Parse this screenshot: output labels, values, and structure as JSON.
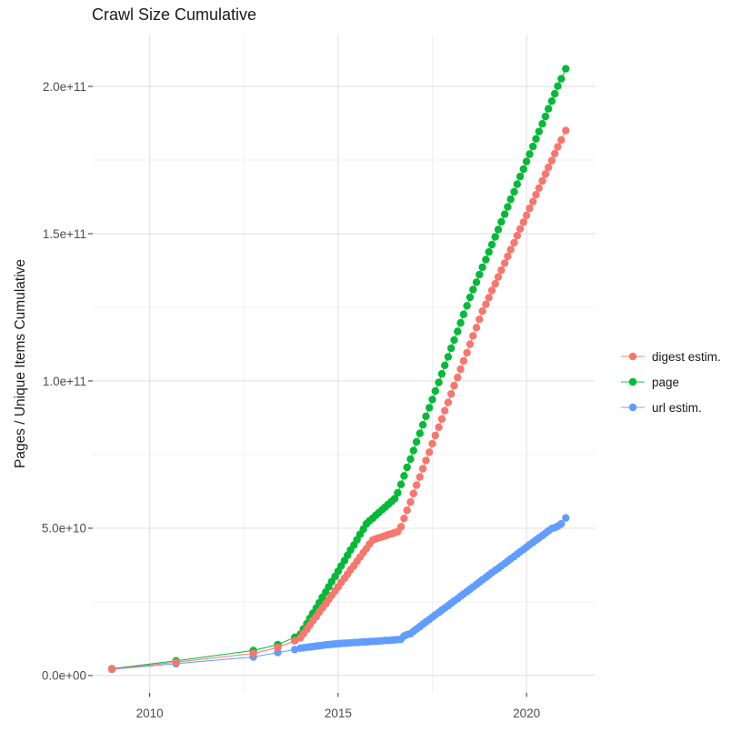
{
  "chart_data": {
    "type": "line",
    "title": "Crawl Size Cumulative",
    "xlabel": "",
    "ylabel": "Pages / Unique Items Cumulative",
    "legend_position": "right",
    "grid": true,
    "x_domain": [
      2008.49,
      2021.83
    ],
    "y_domain_e9": [
      -5.9,
      217.6
    ],
    "x_ticks": [
      {
        "label": "2010",
        "year": 2010
      },
      {
        "label": "2015",
        "year": 2015
      },
      {
        "label": "2020",
        "year": 2020
      }
    ],
    "x_minor_years": [
      2012.5,
      2017.5
    ],
    "y_ticks": [
      {
        "label": "0.0e+00",
        "value_e9": 0
      },
      {
        "label": "5.0e+10",
        "value_e9": 50
      },
      {
        "label": "1.0e+11",
        "value_e9": 100
      },
      {
        "label": "1.5e+11",
        "value_e9": 150
      },
      {
        "label": "2.0e+11",
        "value_e9": 200
      }
    ],
    "y_minor_e9": [
      25,
      75,
      125,
      175
    ],
    "colors": {
      "grid_major": "#e4e4e4",
      "grid_minor": "#f0f0f0",
      "tick": "#333333",
      "tick_label": "#4d4d4d",
      "text": "#1a1a1a"
    },
    "series": [
      {
        "name": "digest estim.",
        "color": "#F8766D",
        "points_year_value_e9": [
          [
            2009,
            2.2
          ],
          [
            2010.7,
            4.5
          ],
          [
            2012.75,
            7.5
          ],
          [
            2013.4,
            9.5
          ],
          [
            2013.85,
            11.8
          ],
          [
            2014,
            12.8
          ],
          [
            2014.08,
            14.2
          ],
          [
            2014.17,
            15.7
          ],
          [
            2014.25,
            17.1
          ],
          [
            2014.33,
            18.6
          ],
          [
            2014.42,
            20
          ],
          [
            2014.5,
            21.5
          ],
          [
            2014.58,
            22.9
          ],
          [
            2014.67,
            24.3
          ],
          [
            2014.75,
            25.8
          ],
          [
            2014.83,
            27.2
          ],
          [
            2014.92,
            28.7
          ],
          [
            2015,
            30.1
          ],
          [
            2015.08,
            31.6
          ],
          [
            2015.17,
            33
          ],
          [
            2015.25,
            34.4
          ],
          [
            2015.33,
            35.9
          ],
          [
            2015.42,
            37.3
          ],
          [
            2015.5,
            38.8
          ],
          [
            2015.58,
            40.2
          ],
          [
            2015.67,
            41.7
          ],
          [
            2015.75,
            43.1
          ],
          [
            2015.83,
            44.6
          ],
          [
            2015.92,
            46
          ],
          [
            2016,
            46.4
          ],
          [
            2016.08,
            46.7
          ],
          [
            2016.17,
            47.1
          ],
          [
            2016.25,
            47.4
          ],
          [
            2016.33,
            47.8
          ],
          [
            2016.42,
            48.1
          ],
          [
            2016.5,
            48.5
          ],
          [
            2016.58,
            48.8
          ],
          [
            2016.67,
            50.5
          ],
          [
            2016.75,
            53.3
          ],
          [
            2016.83,
            56.1
          ],
          [
            2016.92,
            58.9
          ],
          [
            2017,
            61.8
          ],
          [
            2017.08,
            64.6
          ],
          [
            2017.17,
            67.4
          ],
          [
            2017.25,
            70.2
          ],
          [
            2017.33,
            73
          ],
          [
            2017.42,
            75.8
          ],
          [
            2017.5,
            78.7
          ],
          [
            2017.58,
            81.5
          ],
          [
            2017.67,
            84.3
          ],
          [
            2017.75,
            87.1
          ],
          [
            2017.83,
            89.9
          ],
          [
            2017.92,
            92.7
          ],
          [
            2018,
            95.6
          ],
          [
            2018.08,
            98.4
          ],
          [
            2018.17,
            101.2
          ],
          [
            2018.25,
            104
          ],
          [
            2018.33,
            106.8
          ],
          [
            2018.42,
            109.6
          ],
          [
            2018.5,
            112.5
          ],
          [
            2018.58,
            115.3
          ],
          [
            2018.67,
            118.1
          ],
          [
            2018.75,
            120.9
          ],
          [
            2018.83,
            123.7
          ],
          [
            2018.92,
            126
          ],
          [
            2019,
            128.3
          ],
          [
            2019.08,
            130.7
          ],
          [
            2019.17,
            133
          ],
          [
            2019.25,
            135.3
          ],
          [
            2019.33,
            137.6
          ],
          [
            2019.42,
            140
          ],
          [
            2019.5,
            142.3
          ],
          [
            2019.58,
            144.6
          ],
          [
            2019.67,
            146.9
          ],
          [
            2019.75,
            149.3
          ],
          [
            2019.83,
            151.6
          ],
          [
            2019.92,
            153.9
          ],
          [
            2020,
            156.2
          ],
          [
            2020.08,
            158.6
          ],
          [
            2020.17,
            160.9
          ],
          [
            2020.25,
            163.2
          ],
          [
            2020.33,
            165.5
          ],
          [
            2020.42,
            167.9
          ],
          [
            2020.5,
            170.2
          ],
          [
            2020.58,
            172.5
          ],
          [
            2020.67,
            174.8
          ],
          [
            2020.75,
            177.2
          ],
          [
            2020.83,
            179.5
          ],
          [
            2020.92,
            181.8
          ],
          [
            2021.04,
            185
          ]
        ]
      },
      {
        "name": "page",
        "color": "#00BA38",
        "points_year_value_e9": [
          [
            2009,
            2.3
          ],
          [
            2010.7,
            5
          ],
          [
            2012.75,
            8.5
          ],
          [
            2013.4,
            10.5
          ],
          [
            2013.85,
            13
          ],
          [
            2014,
            14
          ],
          [
            2014.08,
            15.8
          ],
          [
            2014.17,
            17.6
          ],
          [
            2014.25,
            19.4
          ],
          [
            2014.33,
            21.1
          ],
          [
            2014.42,
            22.9
          ],
          [
            2014.5,
            24.7
          ],
          [
            2014.58,
            26.5
          ],
          [
            2014.67,
            28.3
          ],
          [
            2014.75,
            30.1
          ],
          [
            2014.83,
            31.9
          ],
          [
            2014.92,
            33.6
          ],
          [
            2015,
            35.4
          ],
          [
            2015.08,
            37.2
          ],
          [
            2015.17,
            39
          ],
          [
            2015.25,
            40.8
          ],
          [
            2015.33,
            42.6
          ],
          [
            2015.42,
            44.3
          ],
          [
            2015.5,
            46.1
          ],
          [
            2015.58,
            47.9
          ],
          [
            2015.67,
            49.7
          ],
          [
            2015.75,
            51.5
          ],
          [
            2015.83,
            52.5
          ],
          [
            2015.92,
            53.4
          ],
          [
            2016,
            54.4
          ],
          [
            2016.08,
            55.3
          ],
          [
            2016.17,
            56.3
          ],
          [
            2016.25,
            57.2
          ],
          [
            2016.33,
            58.1
          ],
          [
            2016.42,
            59.1
          ],
          [
            2016.5,
            60
          ],
          [
            2016.58,
            62
          ],
          [
            2016.67,
            64.9
          ],
          [
            2016.75,
            67.8
          ],
          [
            2016.83,
            70.7
          ],
          [
            2016.92,
            73.5
          ],
          [
            2017,
            76.4
          ],
          [
            2017.08,
            79.3
          ],
          [
            2017.17,
            82.2
          ],
          [
            2017.25,
            85.1
          ],
          [
            2017.33,
            88
          ],
          [
            2017.42,
            90.9
          ],
          [
            2017.5,
            93.7
          ],
          [
            2017.58,
            96.6
          ],
          [
            2017.67,
            99.5
          ],
          [
            2017.75,
            102.4
          ],
          [
            2017.83,
            105.3
          ],
          [
            2017.92,
            108.2
          ],
          [
            2018,
            111.1
          ],
          [
            2018.08,
            113.9
          ],
          [
            2018.17,
            116.8
          ],
          [
            2018.25,
            119.7
          ],
          [
            2018.33,
            122.6
          ],
          [
            2018.42,
            125.5
          ],
          [
            2018.5,
            128.4
          ],
          [
            2018.58,
            131
          ],
          [
            2018.67,
            133.5
          ],
          [
            2018.75,
            136.1
          ],
          [
            2018.83,
            138.6
          ],
          [
            2018.92,
            141.2
          ],
          [
            2019,
            143.8
          ],
          [
            2019.08,
            146.3
          ],
          [
            2019.17,
            148.9
          ],
          [
            2019.25,
            151.4
          ],
          [
            2019.33,
            154
          ],
          [
            2019.42,
            156.6
          ],
          [
            2019.5,
            159.1
          ],
          [
            2019.58,
            161.7
          ],
          [
            2019.67,
            164.2
          ],
          [
            2019.75,
            166.8
          ],
          [
            2019.83,
            169.4
          ],
          [
            2019.92,
            171.9
          ],
          [
            2020,
            174.5
          ],
          [
            2020.08,
            177
          ],
          [
            2020.17,
            179.6
          ],
          [
            2020.25,
            182.2
          ],
          [
            2020.33,
            184.7
          ],
          [
            2020.42,
            187.3
          ],
          [
            2020.5,
            189.8
          ],
          [
            2020.58,
            192.4
          ],
          [
            2020.67,
            195
          ],
          [
            2020.75,
            197.5
          ],
          [
            2020.83,
            200.1
          ],
          [
            2020.92,
            202.6
          ],
          [
            2021.04,
            206
          ]
        ]
      },
      {
        "name": "url estim.",
        "color": "#619CFF",
        "points_year_value_e9": [
          [
            2009,
            2.1
          ],
          [
            2010.7,
            4
          ],
          [
            2012.75,
            6.3
          ],
          [
            2013.4,
            7.8
          ],
          [
            2013.85,
            8.8
          ],
          [
            2014,
            9.3
          ],
          [
            2014.08,
            9.4
          ],
          [
            2014.17,
            9.6
          ],
          [
            2014.25,
            9.7
          ],
          [
            2014.33,
            9.8
          ],
          [
            2014.42,
            10
          ],
          [
            2014.5,
            10.1
          ],
          [
            2014.58,
            10.2
          ],
          [
            2014.67,
            10.4
          ],
          [
            2014.75,
            10.5
          ],
          [
            2014.83,
            10.6
          ],
          [
            2014.92,
            10.7
          ],
          [
            2015,
            10.8
          ],
          [
            2015.08,
            10.9
          ],
          [
            2015.17,
            11
          ],
          [
            2015.25,
            11
          ],
          [
            2015.33,
            11.1
          ],
          [
            2015.42,
            11.2
          ],
          [
            2015.5,
            11.2
          ],
          [
            2015.58,
            11.3
          ],
          [
            2015.67,
            11.4
          ],
          [
            2015.75,
            11.4
          ],
          [
            2015.83,
            11.5
          ],
          [
            2015.92,
            11.6
          ],
          [
            2016,
            11.6
          ],
          [
            2016.08,
            11.7
          ],
          [
            2016.17,
            11.8
          ],
          [
            2016.25,
            11.9
          ],
          [
            2016.33,
            11.9
          ],
          [
            2016.42,
            12
          ],
          [
            2016.5,
            12.1
          ],
          [
            2016.58,
            12.2
          ],
          [
            2016.67,
            12.3
          ],
          [
            2016.75,
            13.4
          ],
          [
            2016.83,
            13.9
          ],
          [
            2016.92,
            14.2
          ],
          [
            2017,
            15
          ],
          [
            2017.08,
            15.8
          ],
          [
            2017.17,
            16.6
          ],
          [
            2017.25,
            17.4
          ],
          [
            2017.33,
            18.2
          ],
          [
            2017.42,
            19
          ],
          [
            2017.5,
            19.8
          ],
          [
            2017.58,
            20.6
          ],
          [
            2017.67,
            21.4
          ],
          [
            2017.75,
            22.2
          ],
          [
            2017.83,
            22.9
          ],
          [
            2017.92,
            23.7
          ],
          [
            2018,
            24.5
          ],
          [
            2018.08,
            25.3
          ],
          [
            2018.17,
            26.1
          ],
          [
            2018.25,
            26.9
          ],
          [
            2018.33,
            27.7
          ],
          [
            2018.42,
            28.5
          ],
          [
            2018.5,
            29.3
          ],
          [
            2018.58,
            30.1
          ],
          [
            2018.67,
            30.9
          ],
          [
            2018.75,
            31.7
          ],
          [
            2018.83,
            32.5
          ],
          [
            2018.92,
            33.3
          ],
          [
            2019,
            34.1
          ],
          [
            2019.08,
            34.9
          ],
          [
            2019.17,
            35.7
          ],
          [
            2019.25,
            36.4
          ],
          [
            2019.33,
            37.2
          ],
          [
            2019.42,
            38
          ],
          [
            2019.5,
            38.8
          ],
          [
            2019.58,
            39.6
          ],
          [
            2019.67,
            40.4
          ],
          [
            2019.75,
            41.2
          ],
          [
            2019.83,
            42
          ],
          [
            2019.92,
            42.8
          ],
          [
            2020,
            43.6
          ],
          [
            2020.08,
            44.4
          ],
          [
            2020.17,
            45.2
          ],
          [
            2020.25,
            46
          ],
          [
            2020.33,
            46.7
          ],
          [
            2020.42,
            47.5
          ],
          [
            2020.5,
            48.3
          ],
          [
            2020.58,
            49.1
          ],
          [
            2020.67,
            49.9
          ],
          [
            2020.75,
            50.2
          ],
          [
            2020.83,
            50.7
          ],
          [
            2020.92,
            51.5
          ],
          [
            2021.04,
            53.5
          ]
        ]
      }
    ]
  }
}
